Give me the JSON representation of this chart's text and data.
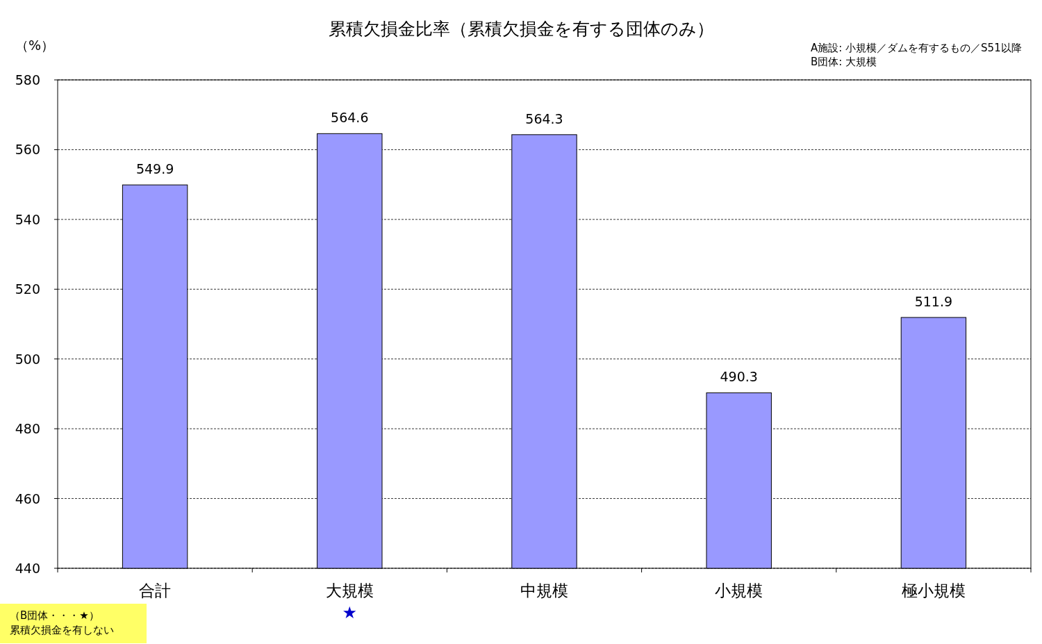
{
  "chart_data": {
    "type": "bar",
    "title": "累積欠損金比率（累積欠損金を有する団体のみ）",
    "ylabel": "（%）",
    "categories": [
      "合計",
      "大規模",
      "中規模",
      "小規模",
      "極小規模"
    ],
    "values": [
      549.9,
      564.6,
      564.3,
      490.3,
      511.9
    ],
    "color": "#9999ff",
    "data_labels": true,
    "ylim": [
      440,
      580
    ],
    "yticks": [
      440,
      460,
      480,
      500,
      520,
      540,
      560,
      580
    ],
    "grid": "y",
    "annotations": [
      "A施設: 小規模／ダムを有するもの／S51以降",
      "B団体: 大規模",
      "★",
      "（B団体・・・★）",
      "累積欠損金を有しない"
    ]
  }
}
